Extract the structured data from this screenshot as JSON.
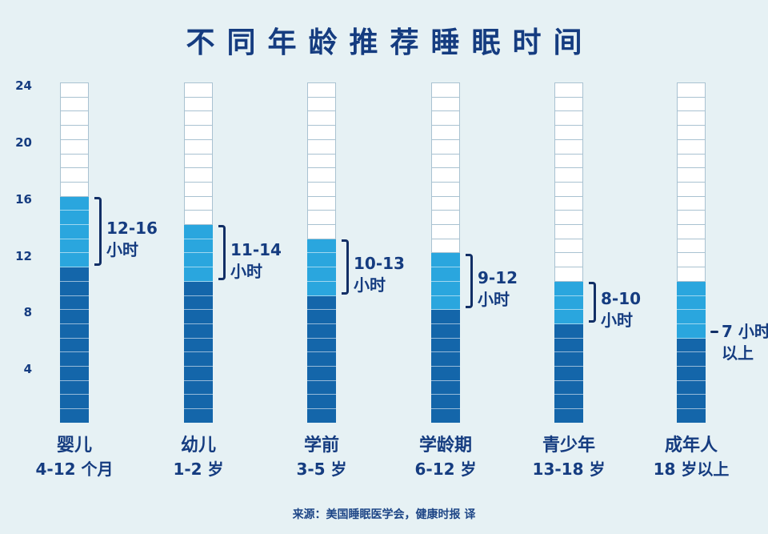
{
  "title": "不同年龄推荐睡眠时间",
  "source": "来源：美国睡眠医学会，健康时报 译",
  "colors": {
    "background": "#e6f1f4",
    "title_text": "#153c80",
    "axis_text": "#153c80",
    "label_text": "#153c80",
    "bar_dark": "#1466aa",
    "bar_light": "#2aa6de",
    "cell_empty": "#ffffff",
    "cell_border": "#a9c2d1",
    "bracket": "#122f66",
    "source_text": "#1d4586"
  },
  "chart_data": {
    "type": "bar",
    "title": "不同年龄推荐睡眠时间",
    "ylabel": "小时",
    "ylim": [
      0,
      24
    ],
    "yticks": [
      24,
      20,
      16,
      12,
      8,
      4
    ],
    "unit": "小时",
    "groups": [
      {
        "name": "婴儿",
        "age": "4-12 个月",
        "min": 12,
        "max": 16,
        "range_line1": "12-16",
        "range_line2": "小时",
        "marker": "bracket"
      },
      {
        "name": "幼儿",
        "age": "1-2 岁",
        "min": 11,
        "max": 14,
        "range_line1": "11-14",
        "range_line2": "小时",
        "marker": "bracket"
      },
      {
        "name": "学前",
        "age": "3-5 岁",
        "min": 10,
        "max": 13,
        "range_line1": "10-13",
        "range_line2": "小时",
        "marker": "bracket"
      },
      {
        "name": "学龄期",
        "age": "6-12 岁",
        "min": 9,
        "max": 12,
        "range_line1": "9-12",
        "range_line2": "小时",
        "marker": "bracket"
      },
      {
        "name": "青少年",
        "age": "13-18 岁",
        "min": 8,
        "max": 10,
        "range_line1": "8-10",
        "range_line2": "小时",
        "marker": "bracket"
      },
      {
        "name": "成年人",
        "age": "18 岁以上",
        "min": 7,
        "max": 10,
        "range_line1": "7 小时",
        "range_line2": "以上",
        "marker": "dash"
      }
    ]
  }
}
